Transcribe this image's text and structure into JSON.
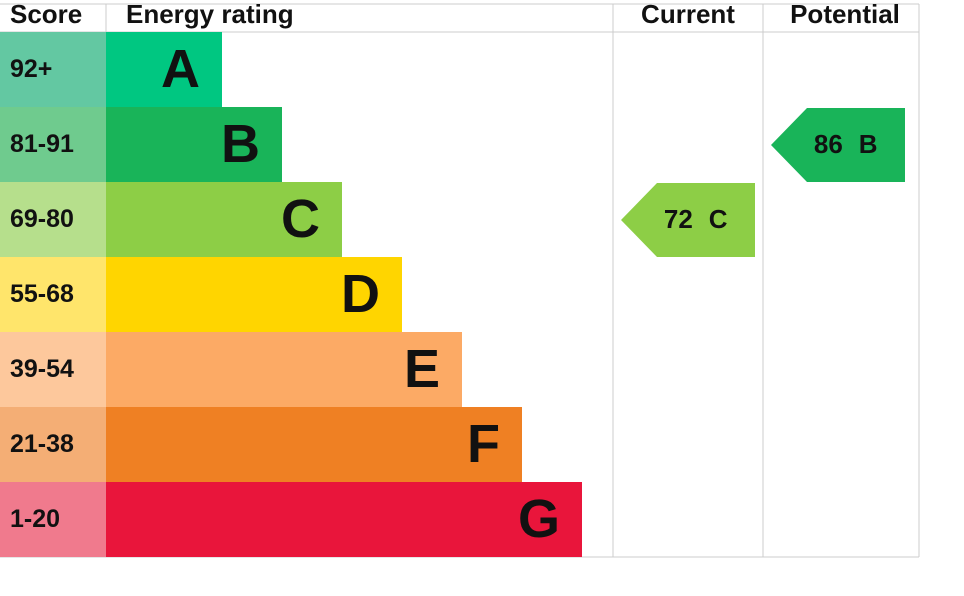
{
  "header": {
    "score": "Score",
    "rating": "Energy rating",
    "current": "Current",
    "potential": "Potential"
  },
  "bands": [
    {
      "score": "92+",
      "letter": "A",
      "color": "#00c781",
      "score_color": "#63c8a2"
    },
    {
      "score": "81-91",
      "letter": "B",
      "color": "#19b459",
      "score_color": "#6fcb8e"
    },
    {
      "score": "69-80",
      "letter": "C",
      "color": "#8dce46",
      "score_color": "#b6df8c"
    },
    {
      "score": "55-68",
      "letter": "D",
      "color": "#ffd500",
      "score_color": "#ffe56b"
    },
    {
      "score": "39-54",
      "letter": "E",
      "color": "#fcaa65",
      "score_color": "#fdc89c"
    },
    {
      "score": "21-38",
      "letter": "F",
      "color": "#ef8023",
      "score_color": "#f4ae75"
    },
    {
      "score": "1-20",
      "letter": "G",
      "color": "#e9153b",
      "score_color": "#f07a8d"
    }
  ],
  "current": {
    "value": "72",
    "letter": "C"
  },
  "potential": {
    "value": "86",
    "letter": "B"
  }
}
